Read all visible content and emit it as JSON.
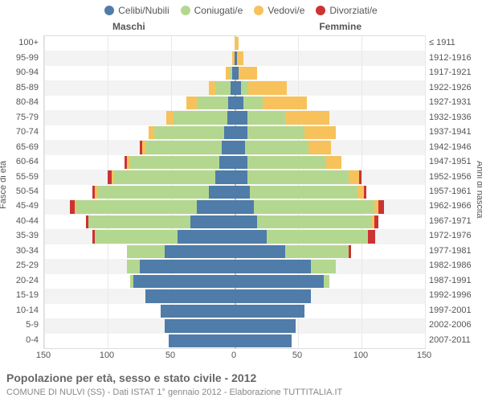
{
  "legend": {
    "items": [
      {
        "label": "Celibi/Nubili",
        "color": "#4f7ca8"
      },
      {
        "label": "Coniugati/e",
        "color": "#b4d790"
      },
      {
        "label": "Vedovi/e",
        "color": "#f7c25b"
      },
      {
        "label": "Divorziati/e",
        "color": "#cc3333"
      }
    ]
  },
  "headers": {
    "male": "Maschi",
    "female": "Femmine"
  },
  "axis": {
    "left_title": "Fasce di età",
    "right_title": "Anni di nascita",
    "x_max": 150,
    "x_ticks": [
      150,
      100,
      50,
      0,
      50,
      100,
      150
    ]
  },
  "caption": "Popolazione per età, sesso e stato civile - 2012",
  "subcaption": "COMUNE DI NULVI (SS) - Dati ISTAT 1° gennaio 2012 - Elaborazione TUTTITALIA.IT",
  "colors": {
    "single": "#4f7ca8",
    "married": "#b4d790",
    "widowed": "#f7c25b",
    "divorced": "#cc3333",
    "grid": "#e8e8e8",
    "alt_bg": "#f3f3f3",
    "center": "#bbbbbb"
  },
  "rows": [
    {
      "age": "100+",
      "birth": "≤ 1911",
      "m": {
        "s": 0,
        "m": 0,
        "w": 0,
        "d": 0
      },
      "f": {
        "s": 0,
        "m": 0,
        "w": 3,
        "d": 0
      }
    },
    {
      "age": "95-99",
      "birth": "1912-1916",
      "m": {
        "s": 0,
        "m": 0,
        "w": 2,
        "d": 0
      },
      "f": {
        "s": 2,
        "m": 0,
        "w": 5,
        "d": 0
      }
    },
    {
      "age": "90-94",
      "birth": "1917-1921",
      "m": {
        "s": 2,
        "m": 2,
        "w": 3,
        "d": 0
      },
      "f": {
        "s": 3,
        "m": 0,
        "w": 15,
        "d": 0
      }
    },
    {
      "age": "85-89",
      "birth": "1922-1926",
      "m": {
        "s": 3,
        "m": 12,
        "w": 5,
        "d": 0
      },
      "f": {
        "s": 5,
        "m": 6,
        "w": 30,
        "d": 0
      }
    },
    {
      "age": "80-84",
      "birth": "1927-1931",
      "m": {
        "s": 5,
        "m": 25,
        "w": 8,
        "d": 0
      },
      "f": {
        "s": 7,
        "m": 15,
        "w": 35,
        "d": 0
      }
    },
    {
      "age": "75-79",
      "birth": "1932-1936",
      "m": {
        "s": 6,
        "m": 42,
        "w": 6,
        "d": 0
      },
      "f": {
        "s": 10,
        "m": 30,
        "w": 35,
        "d": 0
      }
    },
    {
      "age": "70-74",
      "birth": "1937-1941",
      "m": {
        "s": 8,
        "m": 55,
        "w": 5,
        "d": 0
      },
      "f": {
        "s": 10,
        "m": 45,
        "w": 25,
        "d": 0
      }
    },
    {
      "age": "65-69",
      "birth": "1942-1946",
      "m": {
        "s": 10,
        "m": 60,
        "w": 3,
        "d": 2
      },
      "f": {
        "s": 8,
        "m": 50,
        "w": 18,
        "d": 0
      }
    },
    {
      "age": "60-64",
      "birth": "1947-1951",
      "m": {
        "s": 12,
        "m": 70,
        "w": 3,
        "d": 2
      },
      "f": {
        "s": 10,
        "m": 62,
        "w": 12,
        "d": 0
      }
    },
    {
      "age": "55-59",
      "birth": "1952-1956",
      "m": {
        "s": 15,
        "m": 80,
        "w": 2,
        "d": 3
      },
      "f": {
        "s": 10,
        "m": 80,
        "w": 8,
        "d": 2
      }
    },
    {
      "age": "50-54",
      "birth": "1957-1961",
      "m": {
        "s": 20,
        "m": 88,
        "w": 2,
        "d": 2
      },
      "f": {
        "s": 12,
        "m": 85,
        "w": 5,
        "d": 2
      }
    },
    {
      "age": "45-49",
      "birth": "1962-1966",
      "m": {
        "s": 30,
        "m": 95,
        "w": 1,
        "d": 4
      },
      "f": {
        "s": 15,
        "m": 95,
        "w": 3,
        "d": 5
      }
    },
    {
      "age": "40-44",
      "birth": "1967-1971",
      "m": {
        "s": 35,
        "m": 80,
        "w": 0,
        "d": 2
      },
      "f": {
        "s": 18,
        "m": 90,
        "w": 2,
        "d": 3
      }
    },
    {
      "age": "35-39",
      "birth": "1972-1976",
      "m": {
        "s": 45,
        "m": 65,
        "w": 0,
        "d": 2
      },
      "f": {
        "s": 25,
        "m": 80,
        "w": 0,
        "d": 6
      }
    },
    {
      "age": "30-34",
      "birth": "1977-1981",
      "m": {
        "s": 55,
        "m": 30,
        "w": 0,
        "d": 0
      },
      "f": {
        "s": 40,
        "m": 50,
        "w": 0,
        "d": 2
      }
    },
    {
      "age": "25-29",
      "birth": "1982-1986",
      "m": {
        "s": 75,
        "m": 10,
        "w": 0,
        "d": 0
      },
      "f": {
        "s": 60,
        "m": 20,
        "w": 0,
        "d": 0
      }
    },
    {
      "age": "20-24",
      "birth": "1987-1991",
      "m": {
        "s": 80,
        "m": 2,
        "w": 0,
        "d": 0
      },
      "f": {
        "s": 70,
        "m": 5,
        "w": 0,
        "d": 0
      }
    },
    {
      "age": "15-19",
      "birth": "1992-1996",
      "m": {
        "s": 70,
        "m": 0,
        "w": 0,
        "d": 0
      },
      "f": {
        "s": 60,
        "m": 0,
        "w": 0,
        "d": 0
      }
    },
    {
      "age": "10-14",
      "birth": "1997-2001",
      "m": {
        "s": 58,
        "m": 0,
        "w": 0,
        "d": 0
      },
      "f": {
        "s": 55,
        "m": 0,
        "w": 0,
        "d": 0
      }
    },
    {
      "age": "5-9",
      "birth": "2002-2006",
      "m": {
        "s": 55,
        "m": 0,
        "w": 0,
        "d": 0
      },
      "f": {
        "s": 48,
        "m": 0,
        "w": 0,
        "d": 0
      }
    },
    {
      "age": "0-4",
      "birth": "2007-2011",
      "m": {
        "s": 52,
        "m": 0,
        "w": 0,
        "d": 0
      },
      "f": {
        "s": 45,
        "m": 0,
        "w": 0,
        "d": 0
      }
    }
  ]
}
